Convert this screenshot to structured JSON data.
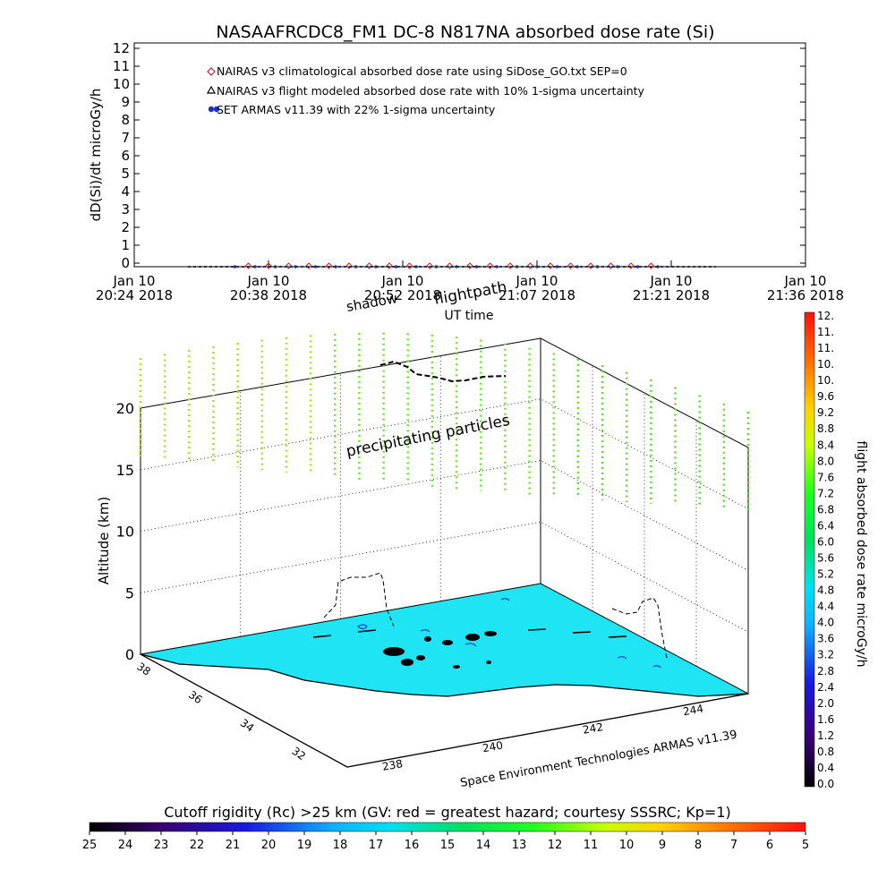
{
  "title": "NASAAFRCDC8_FM1 DC-8   N817NA absorbed dose rate (Si)",
  "chart_data": [
    {
      "type": "scatter",
      "ylabel": "dD(Si)/dt microGy/h",
      "xlabel": "UT time",
      "ylim": [
        0,
        12
      ],
      "yticks": [
        "0",
        "1",
        "2",
        "3",
        "4",
        "5",
        "6",
        "7",
        "8",
        "9",
        "10",
        "11",
        "12"
      ],
      "xticks": [
        {
          "day": "Jan 10",
          "time": "20:24 2018"
        },
        {
          "day": "Jan 10",
          "time": "20:38 2018"
        },
        {
          "day": "Jan 10",
          "time": "20:52 2018"
        },
        {
          "day": "Jan 10",
          "time": "21:07 2018"
        },
        {
          "day": "Jan 10",
          "time": "21:21 2018"
        },
        {
          "day": "Jan 10",
          "time": "21:36 2018"
        }
      ],
      "legend": [
        {
          "marker": "diamond",
          "color": "#cc2222",
          "text": "NAIRAS v3 climatological absorbed dose rate using SiDose_GO.txt SEP=0"
        },
        {
          "marker": "triangle",
          "color": "#000000",
          "text": "NAIRAS v3 flight modeled absorbed dose rate with 10% 1-sigma uncertainty"
        },
        {
          "marker": "dot",
          "color": "#1a33cc",
          "text": "SET ARMAS v11.39 with 22% 1-sigma uncertainty"
        }
      ],
      "legend_position": "top-left",
      "grid": false,
      "series": [
        {
          "name": "NAIRAS climatological",
          "color": "#cc2222",
          "x": [
            0.17,
            0.2,
            0.23,
            0.26,
            0.29,
            0.32,
            0.35,
            0.38,
            0.41,
            0.44,
            0.47,
            0.5,
            0.53,
            0.56,
            0.59,
            0.62,
            0.65,
            0.68,
            0.71,
            0.74,
            0.77
          ],
          "y": [
            0.05,
            0.05,
            0.05,
            0.05,
            0.05,
            0.05,
            0.05,
            0.05,
            0.05,
            0.05,
            0.05,
            0.05,
            0.05,
            0.05,
            0.05,
            0.05,
            0.05,
            0.05,
            0.05,
            0.05,
            0.05
          ]
        },
        {
          "name": "ARMAS",
          "color": "#1a33cc",
          "x": [
            0.15,
            0.18,
            0.21,
            0.24,
            0.27,
            0.3,
            0.33,
            0.36,
            0.39,
            0.42,
            0.45,
            0.48,
            0.51,
            0.54,
            0.57,
            0.6,
            0.63,
            0.66,
            0.69,
            0.72,
            0.75,
            0.78
          ],
          "y": [
            0.0,
            0.0,
            0.0,
            0.0,
            0.0,
            0.0,
            0.0,
            0.0,
            0.0,
            0.0,
            0.0,
            0.0,
            0.0,
            0.0,
            0.0,
            0.0,
            0.0,
            0.0,
            0.0,
            0.0,
            0.0,
            0.0
          ]
        }
      ]
    },
    {
      "type": "surface-3d",
      "zlabel": "Altitude (km)",
      "zticks": [
        "0",
        "5",
        "10",
        "15",
        "20"
      ],
      "lat_ticks": [
        "38",
        "36",
        "34",
        "32"
      ],
      "lon_ticks": [
        "238",
        "240",
        "242",
        "244"
      ],
      "labels": {
        "flightpath": "flightpath",
        "shadow": "shadow",
        "precipitating": "precipitating particles",
        "credit": "Space Environment Technologies ARMAS v11.39"
      },
      "surface_color": "#1ee4f4"
    },
    {
      "type": "colorbar",
      "orientation": "vertical",
      "label": "flight absorbed dose rate microGy/h",
      "ticks": [
        "0.0",
        "0.4",
        "0.8",
        "1.2",
        "1.6",
        "2.0",
        "2.4",
        "2.8",
        "3.2",
        "3.6",
        "4.0",
        "4.4",
        "4.8",
        "5.2",
        "5.6",
        "6.0",
        "6.4",
        "6.8",
        "7.2",
        "7.6",
        "8.0",
        "8.4",
        "8.8",
        "9.2",
        "9.6",
        "10.",
        "10.",
        "11.",
        "11.",
        "12."
      ]
    },
    {
      "type": "colorbar",
      "orientation": "horizontal",
      "label": "Cutoff rigidity (Rc) >25 km (GV: red = greatest hazard; courtesy SSSRC; Kp=1)",
      "ticks": [
        "25",
        "24",
        "23",
        "22",
        "21",
        "20",
        "19",
        "18",
        "17",
        "16",
        "15",
        "14",
        "13",
        "12",
        "11",
        "10",
        "9",
        "8",
        "7",
        "6",
        "5"
      ]
    }
  ]
}
